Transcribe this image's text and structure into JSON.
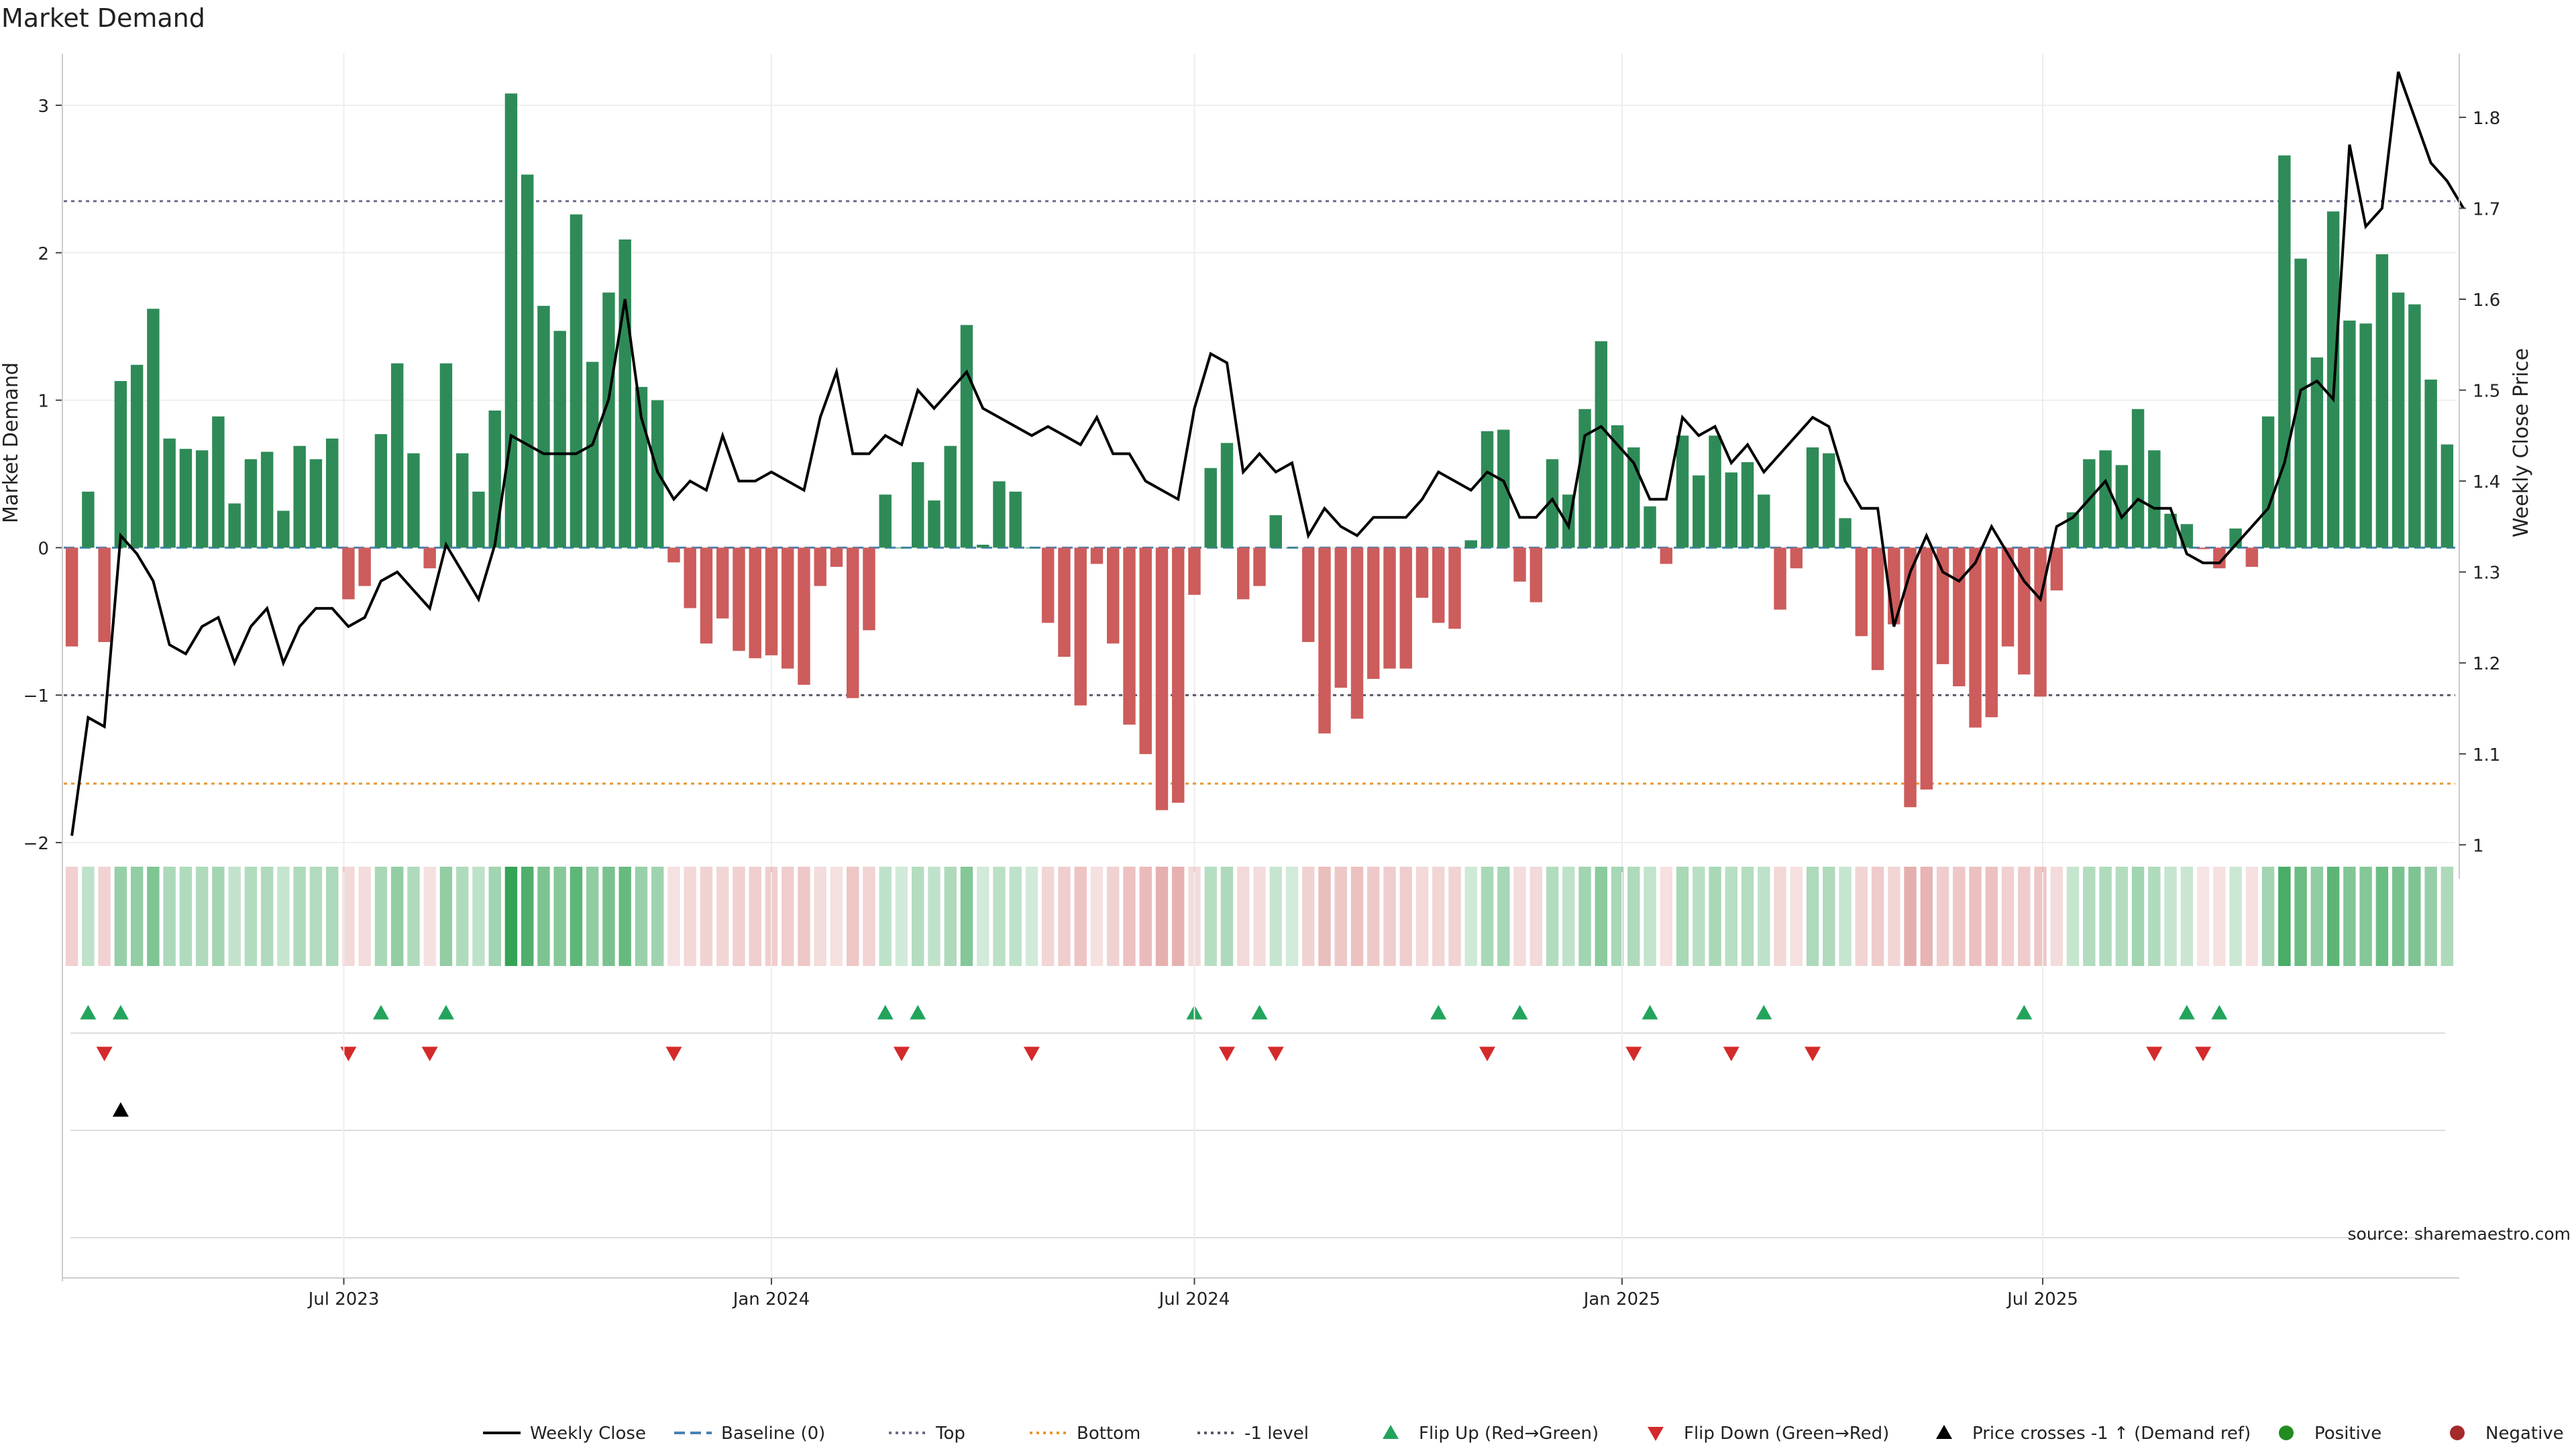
{
  "title": "Market Demand",
  "source": "source: sharemaestro.com",
  "chart_data": {
    "type": "bar",
    "title": "Market Demand",
    "ylabel": "Market Demand",
    "y2label": "Weekly Close Price",
    "ylim": [
      -2.2,
      3.35
    ],
    "y2lim": [
      0.97,
      1.87
    ],
    "yticks": [
      3,
      2,
      1,
      0,
      -1,
      -2
    ],
    "ytick_labels": [
      "3",
      "2",
      "1",
      "0",
      "−1",
      "−2"
    ],
    "y2ticks": [
      1.8,
      1.7,
      1.6,
      1.5,
      1.4,
      1.3,
      1.2,
      1.1,
      1.0
    ],
    "y2tick_labels": [
      "1.8",
      "1.7",
      "1.6",
      "1.5",
      "1.4",
      "1.3",
      "1.2",
      "1.1",
      "1"
    ],
    "x_start": "2023-03-06",
    "x_end": "2025-10-27",
    "xticks": [
      {
        "date": "2023-07-01",
        "label": "Jul 2023"
      },
      {
        "date": "2024-01-01",
        "label": "Jan 2024"
      },
      {
        "date": "2024-07-01",
        "label": "Jul 2024"
      },
      {
        "date": "2025-01-01",
        "label": "Jan 2025"
      },
      {
        "date": "2025-07-01",
        "label": "Jul 2025"
      }
    ],
    "hlines": {
      "top": 2.35,
      "bottom": -1.6,
      "minus_one": -1.0,
      "baseline": 0
    },
    "grid": true,
    "legend_position": "bottom",
    "colors": {
      "positive": "#2e8b57",
      "negative": "#cd5c5c",
      "price": "#000000",
      "baseline": "#4682b4",
      "top": "#6b6b8a",
      "bottom": "#e8952f",
      "minus_one": "#555566",
      "flip_up": "#22a45d",
      "flip_down": "#d42a2a",
      "cross": "#000000"
    },
    "series": [
      {
        "name": "Market Demand",
        "values": [
          -0.67,
          0.38,
          -0.64,
          1.13,
          1.24,
          1.62,
          0.74,
          0.67,
          0.66,
          0.89,
          0.3,
          0.6,
          0.65,
          0.25,
          0.69,
          0.6,
          0.74,
          -0.35,
          -0.26,
          0.77,
          1.25,
          0.64,
          -0.14,
          1.25,
          0.64,
          0.38,
          0.93,
          3.08,
          2.53,
          1.64,
          1.47,
          2.26,
          1.26,
          1.73,
          2.09,
          1.09,
          1.0,
          -0.1,
          -0.41,
          -0.65,
          -0.48,
          -0.7,
          -0.75,
          -0.73,
          -0.82,
          -0.93,
          -0.26,
          -0.13,
          -1.02,
          -0.56,
          0.36,
          0.0,
          0.58,
          0.32,
          0.69,
          1.51,
          0.02,
          0.45,
          0.38,
          0.0,
          -0.51,
          -0.74,
          -1.07,
          -0.11,
          -0.65,
          -1.2,
          -1.4,
          -1.78,
          -1.73,
          -0.32,
          0.54,
          0.71,
          -0.35,
          -0.26,
          0.22,
          0.0,
          -0.64,
          -1.26,
          -0.95,
          -1.16,
          -0.89,
          -0.82,
          -0.82,
          -0.34,
          -0.51,
          -0.55,
          0.05,
          0.79,
          0.8,
          -0.23,
          -0.37,
          0.6,
          0.36,
          0.94,
          1.4,
          0.83,
          0.68,
          0.28,
          -0.11,
          0.76,
          0.49,
          0.76,
          0.51,
          0.58,
          0.36,
          -0.42,
          -0.14,
          0.68,
          0.64,
          0.2,
          -0.6,
          -0.83,
          -0.52,
          -1.76,
          -1.64,
          -0.79,
          -0.94,
          -1.22,
          -1.15,
          -0.67,
          -0.86,
          -1.01,
          -0.29,
          0.24,
          0.6,
          0.66,
          0.56,
          0.94,
          0.66,
          0.23,
          0.16,
          -0.01,
          -0.14,
          0.13,
          -0.13,
          0.89,
          2.66,
          1.96,
          1.29,
          2.28,
          1.54,
          1.52,
          1.99,
          1.73,
          1.65,
          1.14,
          0.7
        ]
      },
      {
        "name": "Weekly Close",
        "values": [
          1.01,
          1.14,
          1.13,
          1.34,
          1.32,
          1.29,
          1.22,
          1.21,
          1.24,
          1.25,
          1.2,
          1.24,
          1.26,
          1.2,
          1.24,
          1.26,
          1.26,
          1.24,
          1.25,
          1.29,
          1.3,
          1.28,
          1.26,
          1.33,
          1.3,
          1.27,
          1.33,
          1.45,
          1.44,
          1.43,
          1.43,
          1.43,
          1.44,
          1.49,
          1.6,
          1.47,
          1.41,
          1.38,
          1.4,
          1.39,
          1.45,
          1.4,
          1.4,
          1.41,
          1.4,
          1.39,
          1.47,
          1.52,
          1.43,
          1.43,
          1.45,
          1.44,
          1.5,
          1.48,
          1.5,
          1.52,
          1.48,
          1.47,
          1.46,
          1.45,
          1.46,
          1.45,
          1.44,
          1.47,
          1.43,
          1.43,
          1.4,
          1.39,
          1.38,
          1.48,
          1.54,
          1.53,
          1.41,
          1.43,
          1.41,
          1.42,
          1.34,
          1.37,
          1.35,
          1.34,
          1.36,
          1.36,
          1.36,
          1.38,
          1.41,
          1.4,
          1.39,
          1.41,
          1.4,
          1.36,
          1.36,
          1.38,
          1.35,
          1.45,
          1.46,
          1.44,
          1.42,
          1.38,
          1.38,
          1.47,
          1.45,
          1.46,
          1.42,
          1.44,
          1.41,
          1.43,
          1.45,
          1.47,
          1.46,
          1.4,
          1.37,
          1.37,
          1.24,
          1.3,
          1.34,
          1.3,
          1.29,
          1.31,
          1.35,
          1.32,
          1.29,
          1.27,
          1.35,
          1.36,
          1.38,
          1.4,
          1.36,
          1.38,
          1.37,
          1.37,
          1.32,
          1.31,
          1.31,
          1.33,
          1.35,
          1.37,
          1.42,
          1.5,
          1.51,
          1.49,
          1.77,
          1.68,
          1.7,
          1.85,
          1.8,
          1.75,
          1.73,
          1.7
        ]
      }
    ],
    "flip_up_weeks": [
      1,
      3,
      19,
      23,
      50,
      52,
      69,
      73,
      84,
      89,
      97,
      104,
      120,
      130,
      132
    ],
    "flip_down_weeks": [
      2,
      17,
      22,
      37,
      51,
      59,
      71,
      74,
      87,
      96,
      102,
      107,
      128,
      131
    ],
    "cross_weeks": [
      3
    ],
    "legend": [
      {
        "label": "Weekly Close",
        "kind": "line",
        "color": "#000000",
        "dash": ""
      },
      {
        "label": "Baseline (0)",
        "kind": "line",
        "color": "#4682b4",
        "dash": "16 8"
      },
      {
        "label": "Top",
        "kind": "line",
        "color": "#6b6b8a",
        "dash": "4 6"
      },
      {
        "label": "Bottom",
        "kind": "line",
        "color": "#e8952f",
        "dash": "4 6"
      },
      {
        "label": "-1 level",
        "kind": "line",
        "color": "#555566",
        "dash": "4 6"
      },
      {
        "label": "Flip Up (Red→Green)",
        "kind": "tri-up",
        "color": "#22a45d"
      },
      {
        "label": "Flip Down (Green→Red)",
        "kind": "tri-down",
        "color": "#d42a2a"
      },
      {
        "label": "Price crosses -1 ↑ (Demand ref)",
        "kind": "tri-up",
        "color": "#000000"
      },
      {
        "label": "Positive",
        "kind": "dot",
        "color": "#228b22"
      },
      {
        "label": "Negative",
        "kind": "dot",
        "color": "#a52a2a"
      }
    ]
  }
}
